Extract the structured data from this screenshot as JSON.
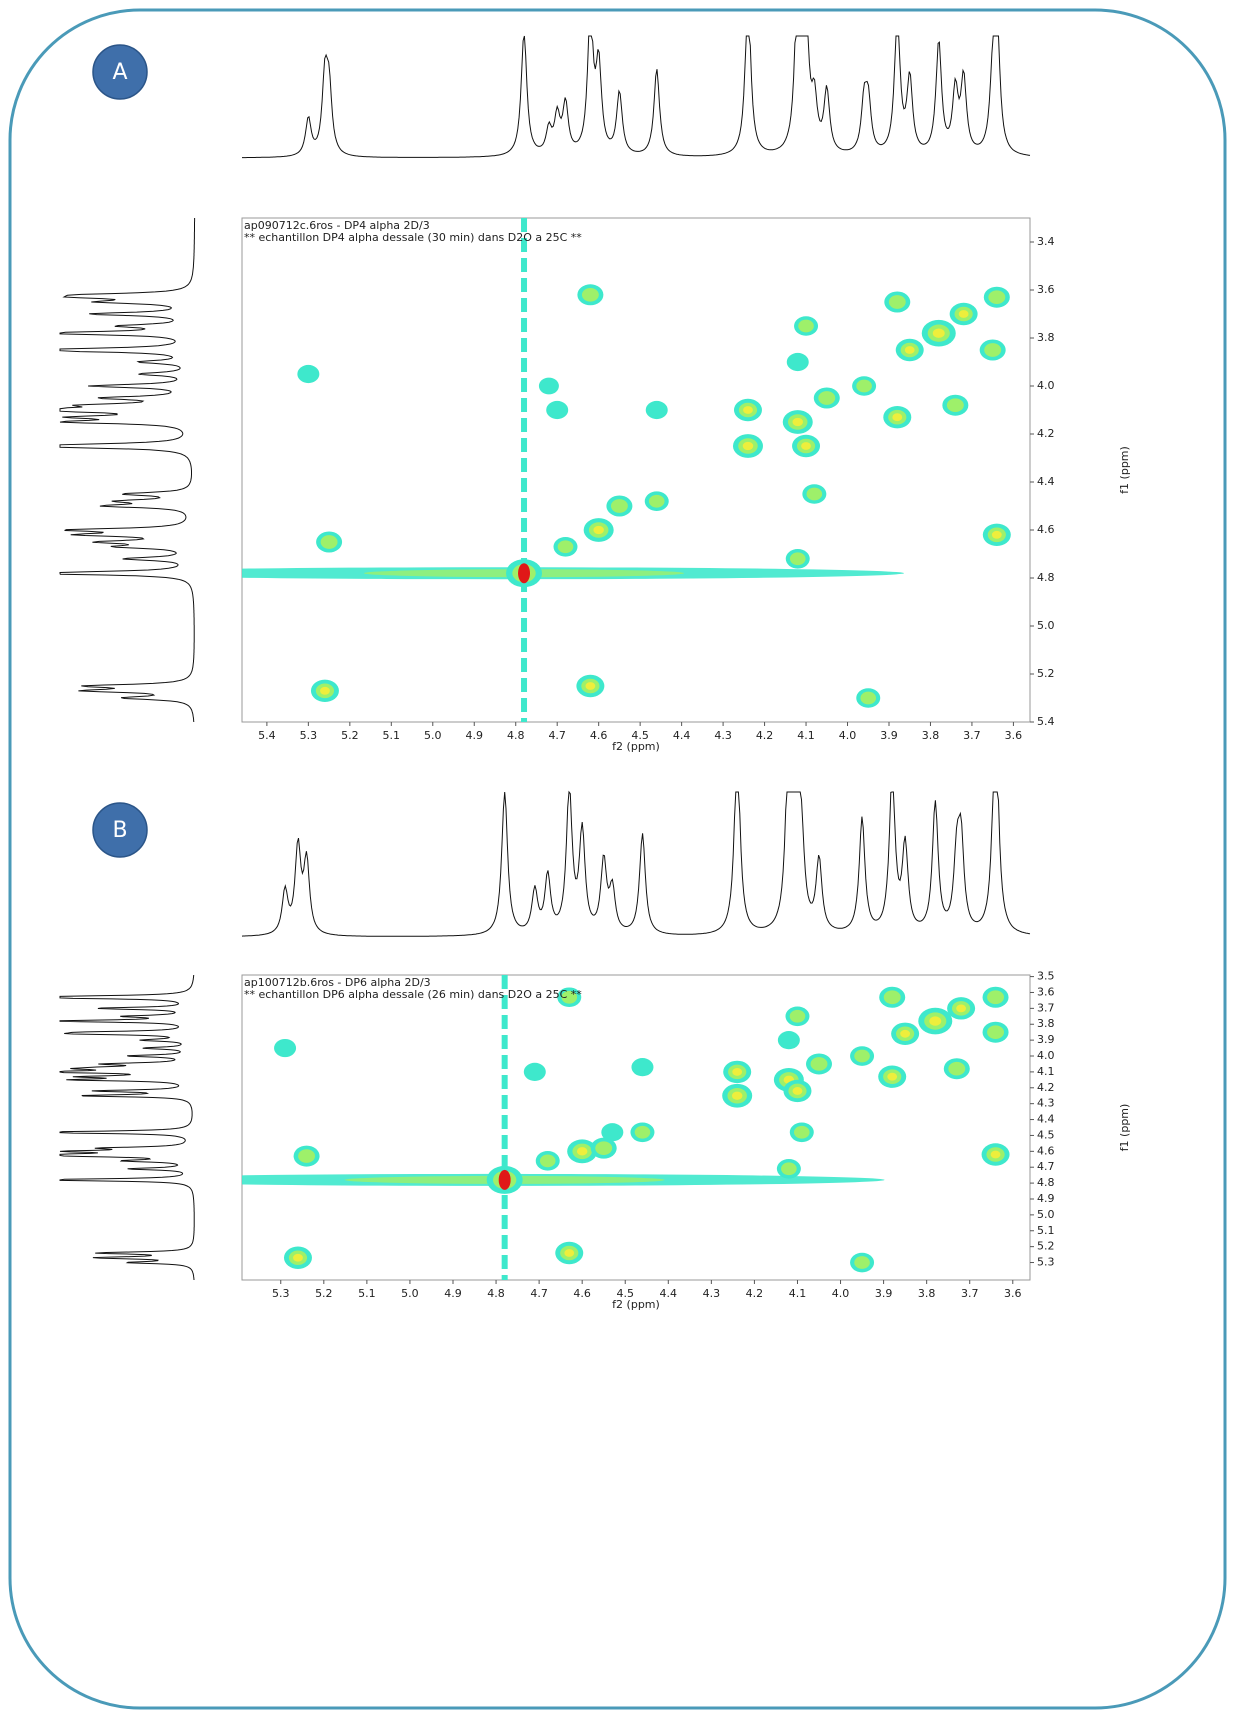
{
  "chart_data": [
    {
      "type": "contour",
      "panel_label": "A",
      "title": "ap090712c.6ros - DP4 alpha 2D/3",
      "subtitle": "** echantillon DP4 alpha dessale (30 min) dans D2O a 25C **",
      "xlabel": "f2 (ppm)",
      "ylabel": "f1 (ppm)",
      "xlim": [
        5.46,
        3.56
      ],
      "ylim": [
        3.3,
        5.4
      ],
      "xticks": [
        5.4,
        5.3,
        5.2,
        5.1,
        {
          "value": 5,
          "label": "5.0"
        },
        4.9,
        4.8,
        4.7,
        4.6,
        4.5,
        4.4,
        4.3,
        4.2,
        4.1,
        {
          "value": 4,
          "label": "4.0"
        },
        3.9,
        3.8,
        3.7,
        3.6
      ],
      "yticks": [
        3.4,
        3.6,
        3.8,
        {
          "value": 4,
          "label": "4.0"
        },
        4.2,
        4.4,
        4.6,
        4.8,
        {
          "value": 5,
          "label": "5.0"
        },
        5.2,
        5.4
      ],
      "colors": [
        "#3ee8cc",
        "#9ef06a",
        "#eeee3c",
        "#e01818"
      ],
      "peaks": {
        "f2": [
          4.78,
          5.3,
          5.25,
          5.26,
          4.62,
          4.62,
          4.72,
          4.7,
          4.46,
          4.46,
          4.6,
          4.55,
          4.68,
          4.24,
          4.24,
          4.12,
          4.12,
          4.1,
          4.1,
          4.08,
          4.12,
          4.05,
          3.96,
          3.95,
          3.88,
          3.88,
          3.85,
          3.78,
          3.74,
          3.72,
          3.65,
          3.64,
          3.64
        ],
        "f1": [
          4.78,
          3.95,
          4.65,
          5.27,
          3.62,
          5.25,
          4.0,
          4.1,
          4.1,
          4.48,
          4.6,
          4.5,
          4.67,
          4.1,
          4.25,
          4.15,
          3.9,
          3.75,
          4.25,
          4.45,
          4.72,
          4.05,
          4.0,
          5.3,
          3.65,
          4.13,
          3.85,
          3.78,
          4.08,
          3.7,
          3.85,
          3.63,
          4.62
        ],
        "intensity": [
          1.0,
          0.3,
          0.5,
          0.6,
          0.5,
          0.6,
          0.2,
          0.3,
          0.3,
          0.4,
          0.7,
          0.5,
          0.4,
          0.6,
          0.7,
          0.7,
          0.3,
          0.4,
          0.6,
          0.4,
          0.4,
          0.5,
          0.4,
          0.4,
          0.5,
          0.6,
          0.6,
          0.9,
          0.5,
          0.6,
          0.5,
          0.5,
          0.6
        ]
      }
    },
    {
      "type": "contour",
      "panel_label": "B",
      "title": "ap100712b.6ros - DP6 alpha 2D/3",
      "subtitle": "** echantillon DP6 alpha dessale (26 min) dans D2O a 25C **",
      "xlabel": "f2 (ppm)",
      "ylabel": "f1 (ppm)",
      "xlim": [
        5.39,
        3.56
      ],
      "ylim": [
        3.49,
        5.41
      ],
      "xticks": [
        5.3,
        5.2,
        5.1,
        {
          "value": 5,
          "label": "5.0"
        },
        4.9,
        4.8,
        4.7,
        4.6,
        4.5,
        4.4,
        4.3,
        4.2,
        4.1,
        {
          "value": 4,
          "label": "4.0"
        },
        3.9,
        3.8,
        3.7,
        3.6
      ],
      "yticks": [
        3.5,
        3.6,
        3.7,
        3.8,
        3.9,
        {
          "value": 4,
          "label": "4.0"
        },
        4.1,
        4.2,
        4.3,
        4.4,
        4.5,
        4.6,
        4.7,
        4.8,
        4.9,
        {
          "value": 5,
          "label": "5.0"
        },
        5.1,
        5.2,
        5.3
      ],
      "colors": [
        "#3ee8cc",
        "#9ef06a",
        "#eeee3c",
        "#e01818"
      ],
      "peaks": {
        "f2": [
          4.78,
          5.29,
          5.24,
          5.26,
          4.63,
          4.63,
          4.71,
          4.46,
          4.46,
          4.53,
          4.6,
          4.55,
          4.68,
          4.24,
          4.24,
          4.12,
          4.12,
          4.1,
          4.1,
          4.09,
          4.12,
          4.05,
          3.95,
          3.95,
          3.88,
          3.88,
          3.85,
          3.78,
          3.73,
          3.72,
          3.64,
          3.64,
          3.64
        ],
        "f1": [
          4.78,
          3.95,
          4.63,
          5.27,
          3.63,
          5.24,
          4.1,
          4.07,
          4.48,
          4.48,
          4.6,
          4.58,
          4.66,
          4.1,
          4.25,
          4.15,
          3.9,
          3.75,
          4.22,
          4.48,
          4.71,
          4.05,
          4.0,
          5.3,
          3.63,
          4.13,
          3.86,
          3.78,
          4.08,
          3.7,
          3.85,
          3.63,
          4.62
        ],
        "intensity": [
          1.0,
          0.3,
          0.5,
          0.6,
          0.4,
          0.6,
          0.3,
          0.3,
          0.4,
          0.3,
          0.7,
          0.5,
          0.4,
          0.6,
          0.7,
          0.7,
          0.3,
          0.4,
          0.6,
          0.4,
          0.4,
          0.5,
          0.4,
          0.4,
          0.5,
          0.6,
          0.6,
          0.9,
          0.5,
          0.6,
          0.5,
          0.5,
          0.6
        ]
      }
    }
  ]
}
